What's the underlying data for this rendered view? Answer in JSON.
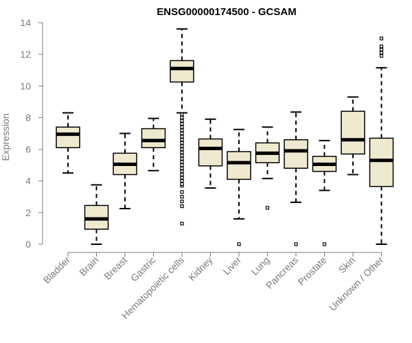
{
  "chart_data": {
    "type": "box",
    "title": "ENSG00000174500 - GCSAM",
    "xlabel": "",
    "ylabel": "Expression",
    "ylim": [
      0,
      14
    ],
    "yticks": [
      0,
      2,
      4,
      6,
      8,
      10,
      12,
      14
    ],
    "grid": false,
    "colors": {
      "box_fill": "#efe9d0",
      "box_stroke": "#000000",
      "axis": "#7a7a7a"
    },
    "categories": [
      "Bladder",
      "Brain",
      "Breast",
      "Gastric",
      "Hematopoietic cells",
      "Kidney",
      "Liver",
      "Lung",
      "Pancreas",
      "Prostate",
      "Skin",
      "Unknown / Other"
    ],
    "boxes": [
      {
        "min": 4.5,
        "q1": 6.1,
        "median": 6.95,
        "q3": 7.4,
        "max": 8.3,
        "outliers": []
      },
      {
        "min": 0.0,
        "q1": 0.95,
        "median": 1.6,
        "q3": 2.45,
        "max": 3.75,
        "outliers": []
      },
      {
        "min": 2.25,
        "q1": 4.4,
        "median": 5.05,
        "q3": 5.75,
        "max": 7.0,
        "outliers": []
      },
      {
        "min": 4.65,
        "q1": 6.1,
        "median": 6.55,
        "q3": 7.3,
        "max": 7.95,
        "outliers": []
      },
      {
        "min": 8.3,
        "q1": 10.25,
        "median": 11.1,
        "q3": 11.6,
        "max": 13.6,
        "outliers": [
          1.3,
          2.4,
          2.7,
          3.0,
          3.3,
          3.7,
          3.8,
          4.0,
          4.2,
          4.4,
          4.6,
          4.8,
          5.0,
          5.2,
          5.4,
          5.6,
          5.8,
          6.0,
          6.2,
          6.4,
          6.6,
          6.8,
          7.0,
          7.2,
          7.4,
          7.6,
          7.8,
          8.0,
          8.2
        ]
      },
      {
        "min": 3.55,
        "q1": 4.95,
        "median": 6.05,
        "q3": 6.65,
        "max": 7.9,
        "outliers": []
      },
      {
        "min": 1.6,
        "q1": 4.1,
        "median": 5.15,
        "q3": 5.85,
        "max": 7.25,
        "outliers": [
          0.0
        ]
      },
      {
        "min": 4.15,
        "q1": 5.15,
        "median": 5.75,
        "q3": 6.4,
        "max": 7.4,
        "outliers": [
          2.3
        ]
      },
      {
        "min": 2.65,
        "q1": 4.8,
        "median": 5.9,
        "q3": 6.6,
        "max": 8.35,
        "outliers": [
          0.0
        ]
      },
      {
        "min": 3.4,
        "q1": 4.6,
        "median": 5.05,
        "q3": 5.55,
        "max": 6.55,
        "outliers": [
          0.0
        ]
      },
      {
        "min": 4.4,
        "q1": 5.7,
        "median": 6.6,
        "q3": 8.4,
        "max": 9.3,
        "outliers": []
      },
      {
        "min": 0.0,
        "q1": 3.65,
        "median": 5.3,
        "q3": 6.7,
        "max": 11.15,
        "outliers": [
          11.9,
          12.1,
          12.3,
          12.5,
          13.0
        ]
      }
    ]
  }
}
